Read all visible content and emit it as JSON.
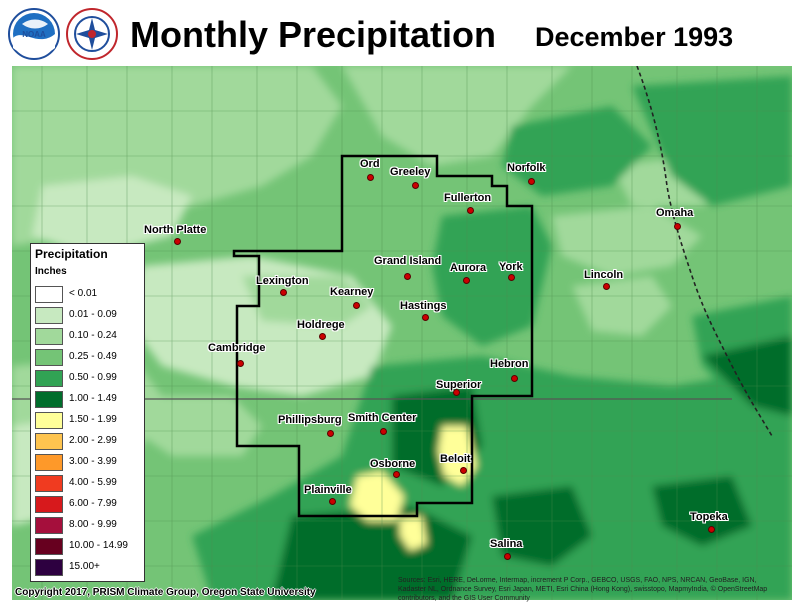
{
  "title": "Monthly Precipitation",
  "date": "December 1993",
  "logos": [
    {
      "name": "noaa-logo",
      "text": "NOAA"
    },
    {
      "name": "nws-logo",
      "text": "NATIONAL WEATHER SERVICE"
    }
  ],
  "legend": {
    "title": "Precipitation",
    "unit": "Inches",
    "classes": [
      {
        "label": "< 0.01",
        "color": "#ffffff"
      },
      {
        "label": "0.01 - 0.09",
        "color": "#c7e9c0"
      },
      {
        "label": "0.10 - 0.24",
        "color": "#a1d99b"
      },
      {
        "label": "0.25 - 0.49",
        "color": "#74c476"
      },
      {
        "label": "0.50 - 0.99",
        "color": "#31a354"
      },
      {
        "label": "1.00 - 1.49",
        "color": "#006d2c"
      },
      {
        "label": "1.50 - 1.99",
        "color": "#ffff99"
      },
      {
        "label": "2.00 - 2.99",
        "color": "#fec44f"
      },
      {
        "label": "3.00 - 3.99",
        "color": "#fe9929"
      },
      {
        "label": "4.00 - 5.99",
        "color": "#f03b20"
      },
      {
        "label": "6.00 - 7.99",
        "color": "#d7191c"
      },
      {
        "label": "8.00 - 9.99",
        "color": "#a50f3c"
      },
      {
        "label": "10.00 - 14.99",
        "color": "#67001f"
      },
      {
        "label": "15.00+",
        "color": "#2d0040"
      }
    ]
  },
  "cities": [
    {
      "name": "Norfolk"
    },
    {
      "name": "Ord"
    },
    {
      "name": "Greeley"
    },
    {
      "name": "Fullerton"
    },
    {
      "name": "Omaha"
    },
    {
      "name": "North Platte"
    },
    {
      "name": "Grand Island"
    },
    {
      "name": "Aurora"
    },
    {
      "name": "York"
    },
    {
      "name": "Lincoln"
    },
    {
      "name": "Lexington"
    },
    {
      "name": "Kearney"
    },
    {
      "name": "Hastings"
    },
    {
      "name": "Holdrege"
    },
    {
      "name": "Cambridge"
    },
    {
      "name": "Hebron"
    },
    {
      "name": "Superior"
    },
    {
      "name": "Phillipsburg"
    },
    {
      "name": "Smith Center"
    },
    {
      "name": "Osborne"
    },
    {
      "name": "Beloit"
    },
    {
      "name": "Plainville"
    },
    {
      "name": "Topeka"
    },
    {
      "name": "Salina"
    }
  ],
  "copyright": "Copyright 2017, PRISM Climate Group, Oregon State University",
  "sources": "Sources: Esri, HERE, DeLorme, Intermap, increment P Corp., GEBCO, USGS, FAO, NPS, NRCAN, GeoBase, IGN, Kadaster NL, Ordnance Survey, Esri Japan, METI, Esri China (Hong Kong), swisstopo, MapmyIndia, © OpenStreetMap contributors, and the GIS User Community"
}
